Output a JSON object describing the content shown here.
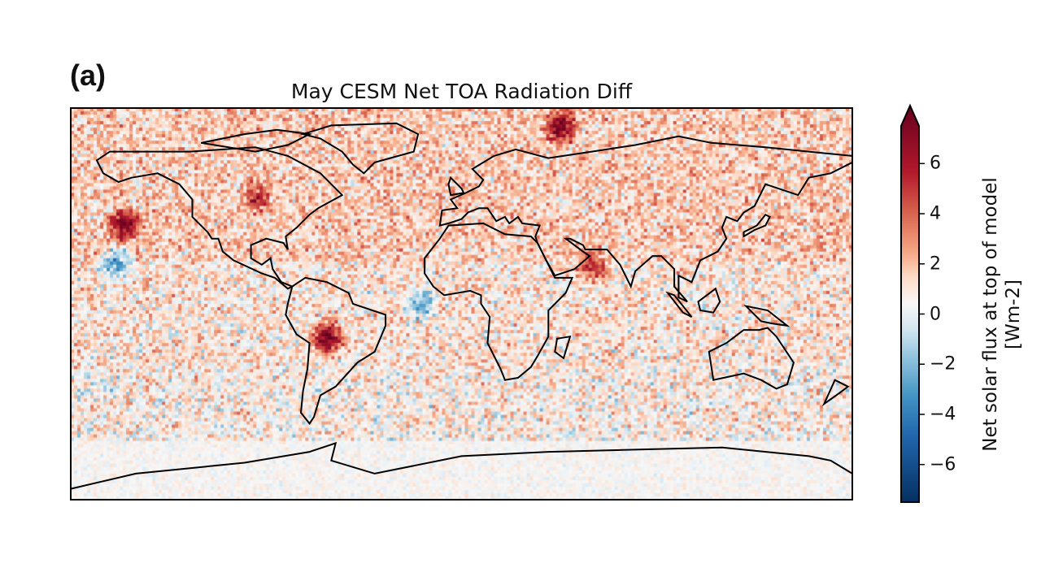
{
  "panel_label": "(a)",
  "chart_data": {
    "type": "heatmap",
    "title": "May CESM Net TOA Radiation Diff",
    "projection": "equirectangular",
    "lon_range": [
      -180,
      180
    ],
    "lat_range": [
      -90,
      90
    ],
    "colormap": "RdBu_r",
    "colorbar": {
      "label_line1": "Net solar flux at top of model",
      "label_line2": "[Wm-2]",
      "range": [
        -7.5,
        7.5
      ],
      "extend": "max",
      "ticks": [
        6,
        4,
        2,
        0,
        -2,
        -4,
        -6
      ],
      "tick_labels": [
        "6",
        "4",
        "2",
        "0",
        "−2",
        "−4",
        "−6"
      ]
    },
    "hotspots": [
      {
        "lon": -62,
        "lat": -15,
        "value": 7
      },
      {
        "lon": -156,
        "lat": 37,
        "value": 6.5
      },
      {
        "lon": 45,
        "lat": 82,
        "value": 6
      },
      {
        "lon": -95,
        "lat": 50,
        "value": 3.5
      },
      {
        "lon": 60,
        "lat": 18,
        "value": 4
      },
      {
        "lon": -160,
        "lat": 20,
        "value": -4
      },
      {
        "lon": -20,
        "lat": 0,
        "value": -3
      }
    ]
  },
  "colors": {
    "stops": [
      "#053061",
      "#2166ac",
      "#4393c3",
      "#92c5de",
      "#d1e5f0",
      "#f7f7f7",
      "#fddbc7",
      "#f4a582",
      "#d6604d",
      "#b2182b",
      "#67001f"
    ]
  }
}
